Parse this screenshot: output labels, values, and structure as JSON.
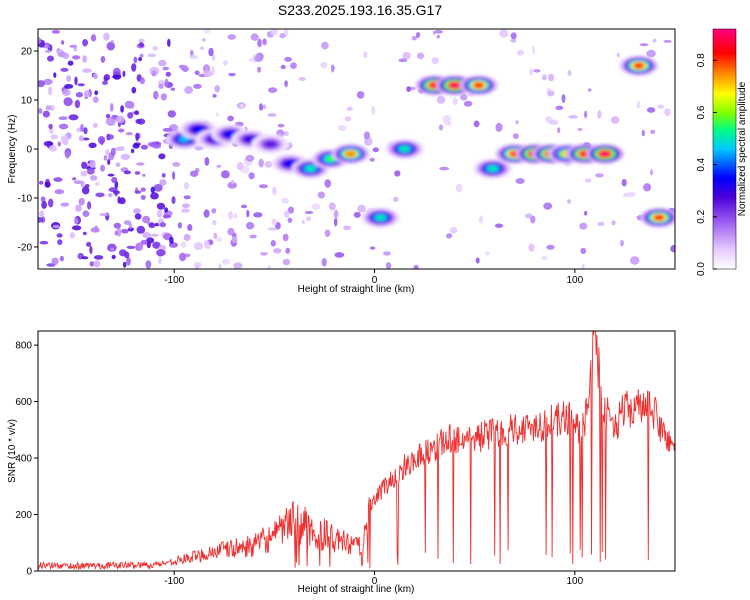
{
  "title": "S233.2025.193.16.35.G17",
  "chart_data": [
    {
      "type": "heatmap",
      "xlabel": "Height of straight line (km)",
      "ylabel": "Frequency (Hz)",
      "xlim": [
        -168,
        150
      ],
      "ylim": [
        -24.5,
        24.5
      ],
      "xticks": [
        -100,
        0,
        100
      ],
      "yticks": [
        -20,
        -10,
        0,
        10,
        20
      ],
      "colorbar": {
        "label": "Normalized spectral amplitude",
        "range": [
          0.0,
          0.92
        ],
        "ticks": [
          "0.0",
          "0.2",
          "0.4",
          "0.6",
          "0.8"
        ],
        "tick_values": [
          0.0,
          0.2,
          0.4,
          0.6,
          0.8
        ],
        "colors": [
          "#ffffff",
          "#e6ccff",
          "#9b59f0",
          "#4b00d8",
          "#0000ff",
          "#00c8ff",
          "#00ff80",
          "#80ff00",
          "#ffff00",
          "#ff8000",
          "#ff0000",
          "#ff0080"
        ]
      },
      "blobs": [
        {
          "x": -95,
          "y": 2,
          "v": 0.45
        },
        {
          "x": -88,
          "y": 4,
          "v": 0.35
        },
        {
          "x": -80,
          "y": 2,
          "v": 0.3
        },
        {
          "x": -72,
          "y": 3,
          "v": 0.35
        },
        {
          "x": -62,
          "y": 2,
          "v": 0.3
        },
        {
          "x": -52,
          "y": 1,
          "v": 0.25
        },
        {
          "x": -42,
          "y": -3,
          "v": 0.35
        },
        {
          "x": -32,
          "y": -4,
          "v": 0.5
        },
        {
          "x": -22,
          "y": -2,
          "v": 0.55
        },
        {
          "x": -12,
          "y": -1,
          "v": 0.75
        },
        {
          "x": 3,
          "y": -14,
          "v": 0.5
        },
        {
          "x": 15,
          "y": 0,
          "v": 0.5
        },
        {
          "x": 30,
          "y": 13,
          "v": 0.85
        },
        {
          "x": 40,
          "y": 13,
          "v": 0.9
        },
        {
          "x": 52,
          "y": 13,
          "v": 0.8
        },
        {
          "x": 59,
          "y": -4,
          "v": 0.5
        },
        {
          "x": 70,
          "y": -1,
          "v": 0.8
        },
        {
          "x": 80,
          "y": -1,
          "v": 0.9
        },
        {
          "x": 88,
          "y": -1,
          "v": 0.85
        },
        {
          "x": 96,
          "y": -1,
          "v": 0.7
        },
        {
          "x": 105,
          "y": -1,
          "v": 0.85
        },
        {
          "x": 115,
          "y": -1,
          "v": 0.9
        },
        {
          "x": 132,
          "y": 17,
          "v": 0.8
        },
        {
          "x": 142,
          "y": -14,
          "v": 0.8
        }
      ]
    },
    {
      "type": "line",
      "xlabel": "Height of straight line (km)",
      "ylabel": "SNR (10 * v/v)",
      "xlim": [
        -168,
        150
      ],
      "ylim": [
        0,
        850
      ],
      "xticks": [
        -100,
        0,
        100
      ],
      "yticks": [
        0,
        200,
        400,
        600,
        800
      ],
      "color": "#ee3030",
      "series": [
        {
          "x": [
            -168,
            -150,
            -130,
            -110,
            -100,
            -90,
            -80,
            -70,
            -60,
            -55,
            -50,
            -45,
            -40,
            -35,
            -30,
            -25,
            -20,
            -15,
            -10,
            -5,
            0,
            5,
            10,
            15,
            20,
            25,
            30,
            35,
            40,
            45,
            50,
            55,
            60,
            65,
            70,
            75,
            80,
            85,
            90,
            95,
            100,
            103,
            106,
            108,
            110,
            115,
            120,
            125,
            130,
            135,
            140,
            145,
            150
          ],
          "y": [
            20,
            18,
            20,
            22,
            35,
            50,
            70,
            80,
            90,
            110,
            120,
            150,
            180,
            160,
            120,
            130,
            110,
            100,
            80,
            120,
            250,
            300,
            330,
            370,
            400,
            420,
            440,
            460,
            470,
            470,
            470,
            480,
            490,
            500,
            510,
            500,
            520,
            520,
            530,
            540,
            550,
            480,
            560,
            720,
            820,
            560,
            520,
            570,
            580,
            575,
            560,
            470,
            460
          ]
        }
      ]
    }
  ]
}
